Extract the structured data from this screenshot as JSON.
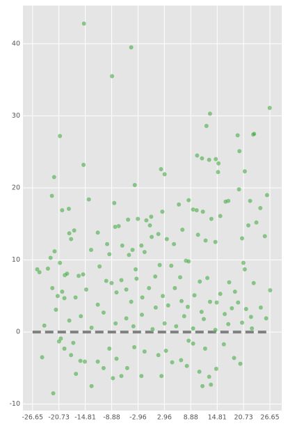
{
  "chart_data": {
    "type": "scatter",
    "color": "#2ca02c",
    "grid": true,
    "xlim": [
      -28.8,
      29.3
    ],
    "ylim": [
      -10.9,
      45.3
    ],
    "xticks": [
      -26.65,
      -20.73,
      -14.81,
      -8.88,
      -2.96,
      2.96,
      8.88,
      14.81,
      20.73,
      26.65
    ],
    "yticks": [
      -10,
      0,
      10,
      20,
      30,
      40
    ],
    "hline": {
      "y": 0,
      "xmin": -26.65,
      "xmax": 26.65,
      "color": "#808080"
    },
    "points": [
      [
        -15.1,
        42.8
      ],
      [
        -4.5,
        39.5
      ],
      [
        -8.8,
        35.5
      ],
      [
        26.6,
        31.1
      ],
      [
        13.2,
        30.3
      ],
      [
        -20.5,
        27.2
      ],
      [
        12.4,
        28.6
      ],
      [
        22.9,
        27.4
      ],
      [
        23.1,
        27.5
      ],
      [
        19.4,
        27.3
      ],
      [
        19.8,
        25.1
      ],
      [
        21.0,
        22.3
      ],
      [
        14.5,
        24.0
      ],
      [
        10.3,
        24.5
      ],
      [
        11.4,
        24.1
      ],
      [
        13.0,
        23.9
      ],
      [
        15.1,
        23.4
      ],
      [
        15.0,
        22.2
      ],
      [
        -15.2,
        23.2
      ],
      [
        -21.8,
        21.5
      ],
      [
        -22.3,
        18.9
      ],
      [
        2.2,
        22.6
      ],
      [
        3.0,
        21.9
      ],
      [
        -3.7,
        20.4
      ],
      [
        26.0,
        19.0
      ],
      [
        22.2,
        18.2
      ],
      [
        -14.0,
        18.4
      ],
      [
        19.7,
        19.8
      ],
      [
        17.3,
        18.2
      ],
      [
        16.7,
        18.1
      ],
      [
        -8.3,
        17.9
      ],
      [
        -20.0,
        16.9
      ],
      [
        9.4,
        17.0
      ],
      [
        10.2,
        16.9
      ],
      [
        11.6,
        16.7
      ],
      [
        8.4,
        18.3
      ],
      [
        6.2,
        17.7
      ],
      [
        13.5,
        15.7
      ],
      [
        15.5,
        16.1
      ],
      [
        -18.5,
        17.1
      ],
      [
        0.0,
        16.0
      ],
      [
        2.5,
        16.7
      ],
      [
        -3.0,
        15.7
      ],
      [
        -5.2,
        15.6
      ],
      [
        -1.1,
        15.5
      ],
      [
        24.5,
        17.2
      ],
      [
        25.5,
        13.3
      ],
      [
        23.6,
        15.2
      ],
      [
        21.8,
        14.8
      ],
      [
        -7.3,
        14.7
      ],
      [
        -8.1,
        14.6
      ],
      [
        -12.0,
        13.8
      ],
      [
        -17.3,
        14.1
      ],
      [
        -18.4,
        13.7
      ],
      [
        -25.6,
        8.7
      ],
      [
        -25.1,
        8.3
      ],
      [
        -23.2,
        8.8
      ],
      [
        -21.7,
        11.2
      ],
      [
        -22.6,
        10.3
      ],
      [
        -20.5,
        9.6
      ],
      [
        -18.0,
        12.9
      ],
      [
        -15.3,
        8.0
      ],
      [
        -16.3,
        7.8
      ],
      [
        -19.4,
        7.9
      ],
      [
        -18.9,
        8.1
      ],
      [
        -13.5,
        11.4
      ],
      [
        -9.9,
        12.2
      ],
      [
        -9.4,
        10.8
      ],
      [
        -11.6,
        9.1
      ],
      [
        -6.5,
        12.0
      ],
      [
        -4.2,
        11.4
      ],
      [
        -2.2,
        12.0
      ],
      [
        0.1,
        13.2
      ],
      [
        -0.3,
        14.8
      ],
      [
        1.6,
        13.6
      ],
      [
        3.5,
        12.9
      ],
      [
        5.1,
        12.2
      ],
      [
        7.8,
        9.9
      ],
      [
        8.4,
        9.8
      ],
      [
        12.2,
        12.7
      ],
      [
        14.4,
        12.5
      ],
      [
        10.5,
        13.5
      ],
      [
        7.0,
        14.2
      ],
      [
        20.4,
        13.0
      ],
      [
        -3.5,
        8.7
      ],
      [
        -5.0,
        10.7
      ],
      [
        -1.5,
        11.1
      ],
      [
        0.9,
        7.7
      ],
      [
        1.9,
        9.3
      ],
      [
        4.5,
        9.2
      ],
      [
        6.5,
        7.6
      ],
      [
        10.9,
        7.0
      ],
      [
        12.6,
        7.5
      ],
      [
        15.5,
        5.3
      ],
      [
        17.5,
        6.9
      ],
      [
        18.8,
        5.6
      ],
      [
        21.0,
        8.7
      ],
      [
        20.7,
        9.6
      ],
      [
        23.0,
        6.8
      ],
      [
        26.7,
        5.8
      ],
      [
        -22.2,
        6.1
      ],
      [
        -21.0,
        5.0
      ],
      [
        -20.0,
        5.6
      ],
      [
        -19.5,
        4.7
      ],
      [
        -17.0,
        4.8
      ],
      [
        -14.6,
        5.9
      ],
      [
        -12.0,
        3.8
      ],
      [
        -10.1,
        7.1
      ],
      [
        -8.9,
        6.8
      ],
      [
        -7.8,
        5.5
      ],
      [
        -6.7,
        7.2
      ],
      [
        -5.6,
        5.9
      ],
      [
        -4.5,
        4.2
      ],
      [
        -3.3,
        7.4
      ],
      [
        -2.0,
        4.8
      ],
      [
        -0.5,
        6.1
      ],
      [
        1.0,
        3.4
      ],
      [
        2.6,
        5.0
      ],
      [
        3.8,
        3.7
      ],
      [
        5.3,
        6.1
      ],
      [
        6.8,
        4.3
      ],
      [
        8.2,
        3.5
      ],
      [
        9.7,
        5.1
      ],
      [
        11.3,
        2.8
      ],
      [
        13.2,
        4.2
      ],
      [
        14.7,
        4.1
      ],
      [
        16.5,
        2.5
      ],
      [
        18.1,
        3.3
      ],
      [
        19.5,
        4.1
      ],
      [
        21.3,
        3.2
      ],
      [
        22.4,
        2.1
      ],
      [
        24.6,
        3.4
      ],
      [
        25.8,
        1.9
      ],
      [
        -24.0,
        0.9
      ],
      [
        -21.4,
        3.1
      ],
      [
        -18.4,
        1.6
      ],
      [
        -15.8,
        2.2
      ],
      [
        -13.4,
        0.6
      ],
      [
        -10.7,
        2.7
      ],
      [
        -8.0,
        1.2
      ],
      [
        -5.6,
        1.9
      ],
      [
        -4.0,
        0.8
      ],
      [
        -2.1,
        2.4
      ],
      [
        0.3,
        0.4
      ],
      [
        3.0,
        1.2
      ],
      [
        5.6,
        0.8
      ],
      [
        7.4,
        2.2
      ],
      [
        9.4,
        0.5
      ],
      [
        11.8,
        1.8
      ],
      [
        14.4,
        0.3
      ],
      [
        17.3,
        1.1
      ],
      [
        20.4,
        1.3
      ],
      [
        22.6,
        0.5
      ],
      [
        -24.5,
        -3.5
      ],
      [
        -22.0,
        -8.5
      ],
      [
        -20.3,
        -0.9
      ],
      [
        -19.5,
        -2.3
      ],
      [
        -18.0,
        -3.2
      ],
      [
        -16.9,
        -5.8
      ],
      [
        -15.9,
        -4.0
      ],
      [
        -14.9,
        -4.1
      ],
      [
        -13.4,
        -7.5
      ],
      [
        -12.0,
        -4.1
      ],
      [
        -10.7,
        -5.0
      ],
      [
        -9.4,
        -2.3
      ],
      [
        -8.6,
        -6.4
      ],
      [
        -7.8,
        -3.7
      ],
      [
        -6.7,
        -6.1
      ],
      [
        -5.4,
        -5.0
      ],
      [
        -3.8,
        -2.1
      ],
      [
        -2.2,
        -6.1
      ],
      [
        -1.5,
        -2.7
      ],
      [
        1.6,
        -3.2
      ],
      [
        2.3,
        -6.1
      ],
      [
        3.3,
        -2.6
      ],
      [
        4.7,
        -4.2
      ],
      [
        6.7,
        -3.9
      ],
      [
        8.0,
        -4.7
      ],
      [
        9.4,
        -1.6
      ],
      [
        10.8,
        -5.5
      ],
      [
        12.1,
        -2.3
      ],
      [
        13.4,
        -7.3
      ],
      [
        14.6,
        -5.1
      ],
      [
        16.3,
        -1.7
      ],
      [
        18.6,
        -3.6
      ],
      [
        20.0,
        -4.4
      ],
      [
        -20.7,
        -1.3
      ],
      [
        -17.5,
        -1.5
      ],
      [
        11.5,
        -7.5
      ],
      [
        13.0,
        -6.2
      ],
      [
        8.4,
        -1.2
      ]
    ]
  }
}
